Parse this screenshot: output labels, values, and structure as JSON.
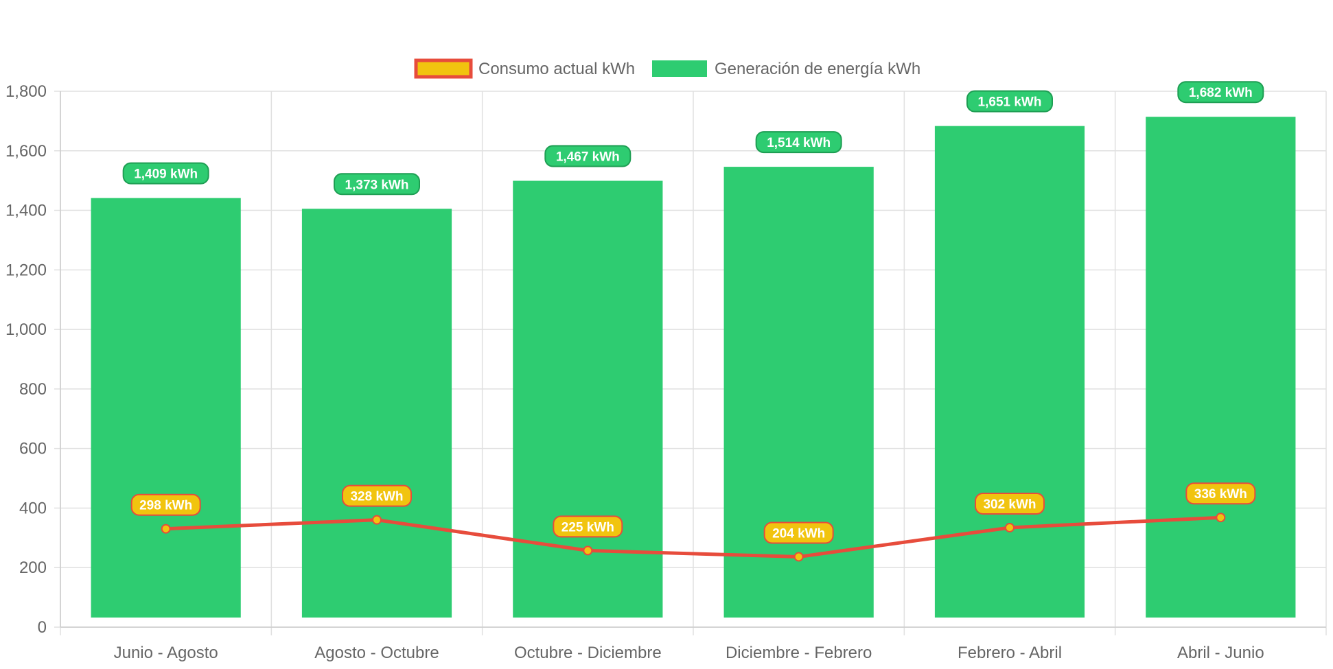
{
  "chart_data": {
    "type": "bar",
    "title": "",
    "xlabel": "",
    "ylabel": "",
    "ylim": [
      0,
      1800
    ],
    "yticks": [
      0,
      200,
      400,
      600,
      800,
      1000,
      1200,
      1400,
      1600,
      1800
    ],
    "ytick_labels": [
      "0",
      "200",
      "400",
      "600",
      "800",
      "1,000",
      "1,200",
      "1,400",
      "1,600",
      "1,800"
    ],
    "grid": true,
    "legend_position": "top-center",
    "categories": [
      "Junio - Agosto",
      "Agosto - Octubre",
      "Octubre - Diciembre",
      "Diciembre - Febrero",
      "Febrero - Abril",
      "Abril - Junio"
    ],
    "series": [
      {
        "name": "Consumo actual kWh",
        "kind": "line",
        "color": "#e74c3c",
        "point_color": "#f1c40f",
        "values": [
          298,
          328,
          225,
          204,
          302,
          336
        ],
        "labels": [
          "298 kWh",
          "328 kWh",
          "225 kWh",
          "204 kWh",
          "302 kWh",
          "336 kWh"
        ]
      },
      {
        "name": "Generación de energía kWh",
        "kind": "bar",
        "color": "#2ecc71",
        "values": [
          1409,
          1373,
          1467,
          1514,
          1651,
          1682
        ],
        "labels": [
          "1,409 kWh",
          "1,373 kWh",
          "1,467 kWh",
          "1,514 kWh",
          "1,651 kWh",
          "1,682 kWh"
        ]
      }
    ]
  }
}
